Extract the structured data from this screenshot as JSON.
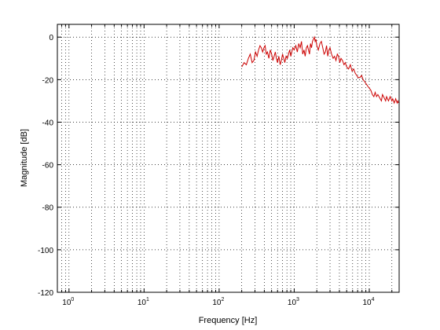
{
  "chart_data": {
    "type": "line",
    "xlabel": "Frequency [Hz]",
    "ylabel": "Magnitude [dB]",
    "x_scale": "log",
    "xlim": [
      0.7,
      25000
    ],
    "ylim": [
      -120,
      6
    ],
    "grid": true,
    "x_ticks": [
      {
        "base": "10",
        "exp": "0",
        "value": 1
      },
      {
        "base": "10",
        "exp": "1",
        "value": 10
      },
      {
        "base": "10",
        "exp": "2",
        "value": 100
      },
      {
        "base": "10",
        "exp": "3",
        "value": 1000
      },
      {
        "base": "10",
        "exp": "4",
        "value": 10000
      }
    ],
    "y_ticks": [
      {
        "label": "0",
        "value": 0
      },
      {
        "label": "-20",
        "value": -20
      },
      {
        "label": "-40",
        "value": -40
      },
      {
        "label": "-60",
        "value": -60
      },
      {
        "label": "-80",
        "value": -80
      },
      {
        "label": "-100",
        "value": -100
      },
      {
        "label": "-120",
        "value": -120
      }
    ],
    "series": [
      {
        "color": "#cc0000",
        "x": [
          200,
          215,
          230,
          245,
          260,
          275,
          290,
          305,
          320,
          335,
          350,
          365,
          380,
          395,
          410,
          425,
          440,
          460,
          480,
          500,
          520,
          540,
          560,
          580,
          600,
          625,
          650,
          675,
          700,
          725,
          750,
          780,
          810,
          840,
          870,
          900,
          930,
          960,
          1000,
          1050,
          1100,
          1150,
          1200,
          1250,
          1300,
          1350,
          1400,
          1450,
          1500,
          1550,
          1600,
          1650,
          1700,
          1750,
          1800,
          1850,
          1900,
          1950,
          2000,
          2100,
          2200,
          2300,
          2400,
          2500,
          2600,
          2700,
          2800,
          2900,
          3000,
          3150,
          3300,
          3450,
          3600,
          3750,
          3900,
          4050,
          4200,
          4400,
          4600,
          4800,
          5000,
          5300,
          5600,
          5900,
          6200,
          6500,
          6800,
          7100,
          7500,
          7900,
          8300,
          8700,
          9100,
          9500,
          10000,
          10500,
          11000,
          11500,
          12000,
          12500,
          13000,
          13500,
          14000,
          14500,
          15000,
          15500,
          16000,
          16500,
          17000,
          17500,
          18000,
          18500,
          19000,
          19500,
          20000,
          20500,
          21000,
          21500,
          22000,
          22500,
          23000,
          23500,
          24000,
          24500
        ],
        "y": [
          -14,
          -12,
          -13,
          -10,
          -8,
          -12,
          -11,
          -7,
          -9,
          -6,
          -4,
          -5,
          -7,
          -5,
          -4,
          -8,
          -7,
          -10,
          -6,
          -8,
          -11,
          -9,
          -7,
          -10,
          -12,
          -9,
          -13,
          -11,
          -8,
          -10,
          -12,
          -9,
          -10,
          -8,
          -6,
          -9,
          -7,
          -5,
          -6,
          -4,
          -7,
          -3,
          -5,
          -2,
          -8,
          -6,
          -9,
          -5,
          -4,
          -6,
          -8,
          -3,
          -5,
          -2,
          -1,
          0,
          -2,
          -1,
          -4,
          -6,
          -3,
          -2,
          -5,
          -8,
          -7,
          -4,
          -9,
          -6,
          -5,
          -8,
          -10,
          -9,
          -11,
          -8,
          -9,
          -12,
          -10,
          -11,
          -13,
          -12,
          -14,
          -15,
          -13,
          -16,
          -15,
          -17,
          -18,
          -19,
          -19,
          -18,
          -20,
          -21,
          -22,
          -23,
          -24,
          -25,
          -27,
          -28,
          -26,
          -28,
          -27,
          -28,
          -29,
          -30,
          -27,
          -28,
          -29,
          -30,
          -28,
          -29,
          -30,
          -29,
          -28,
          -29,
          -30,
          -29,
          -30,
          -31,
          -30,
          -29,
          -30,
          -31,
          -30,
          -31
        ]
      }
    ]
  }
}
